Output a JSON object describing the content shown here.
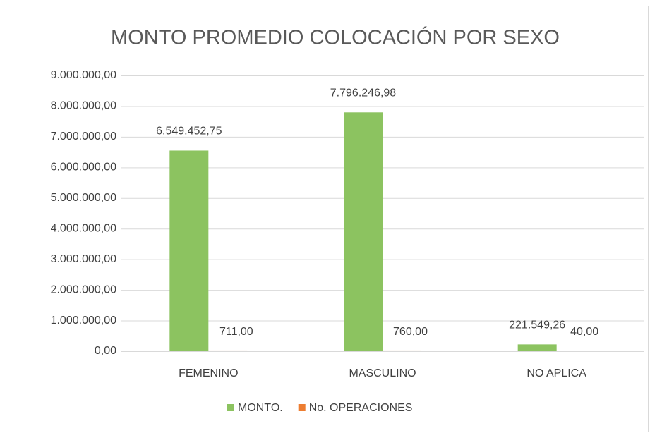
{
  "chart_data": {
    "type": "bar",
    "title": "MONTO PROMEDIO COLOCACIÓN POR SEXO",
    "categories": [
      "FEMENINO",
      "MASCULINO",
      "NO APLICA"
    ],
    "series": [
      {
        "name": "MONTO.",
        "color": "#8cc360",
        "values": [
          6549452.75,
          7796246.98,
          221549.26
        ],
        "value_labels": [
          "6.549.452,75",
          "7.796.246,98",
          "221.549,26"
        ]
      },
      {
        "name": "No. OPERACIONES",
        "color": "#ed7d31",
        "values": [
          711,
          760,
          40
        ],
        "value_labels": [
          "711,00",
          "760,00",
          "40,00"
        ]
      }
    ],
    "ylim": [
      0,
      9000000
    ],
    "yticks": [
      {
        "value": 0,
        "label": "0,00"
      },
      {
        "value": 1000000,
        "label": "1.000.000,00"
      },
      {
        "value": 2000000,
        "label": "2.000.000,00"
      },
      {
        "value": 3000000,
        "label": "3.000.000,00"
      },
      {
        "value": 4000000,
        "label": "4.000.000,00"
      },
      {
        "value": 5000000,
        "label": "5.000.000,00"
      },
      {
        "value": 6000000,
        "label": "6.000.000,00"
      },
      {
        "value": 7000000,
        "label": "7.000.000,00"
      },
      {
        "value": 8000000,
        "label": "8.000.000,00"
      },
      {
        "value": 9000000,
        "label": "9.000.000,00"
      }
    ],
    "grid": true,
    "legend": "bottom"
  }
}
